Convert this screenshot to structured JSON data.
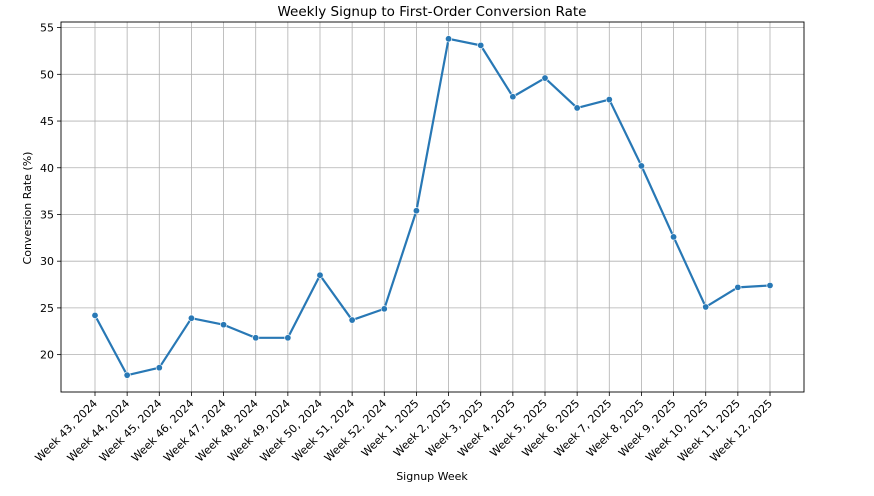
{
  "chart_data": {
    "type": "line",
    "title": "Weekly Signup to First-Order Conversion Rate",
    "xlabel": "Signup Week",
    "ylabel": "Conversion Rate (%)",
    "categories": [
      "Week 43, 2024",
      "Week 44, 2024",
      "Week 45, 2024",
      "Week 46, 2024",
      "Week 47, 2024",
      "Week 48, 2024",
      "Week 49, 2024",
      "Week 50, 2024",
      "Week 51, 2024",
      "Week 52, 2024",
      "Week 1, 2025",
      "Week 2, 2025",
      "Week 3, 2025",
      "Week 4, 2025",
      "Week 5, 2025",
      "Week 6, 2025",
      "Week 7, 2025",
      "Week 8, 2025",
      "Week 9, 2025",
      "Week 10, 2025",
      "Week 11, 2025",
      "Week 12, 2025"
    ],
    "series": [
      {
        "values": [
          24.2,
          17.8,
          18.6,
          23.9,
          23.2,
          21.8,
          21.8,
          28.5,
          23.7,
          24.9,
          35.4,
          53.8,
          53.1,
          47.6,
          49.6,
          46.4,
          47.3,
          40.2,
          32.6,
          25.1,
          27.2,
          27.4
        ],
        "color": "#2878b5"
      }
    ],
    "yticks": [
      20,
      25,
      30,
      35,
      40,
      45,
      50,
      55
    ],
    "ylim": [
      16.0,
      55.6
    ],
    "grid": true,
    "markers": true
  }
}
